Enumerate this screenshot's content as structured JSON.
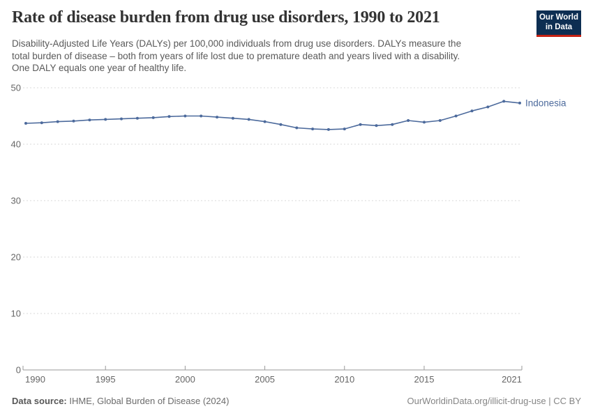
{
  "header": {
    "title": "Rate of disease burden from drug use disorders, 1990 to 2021",
    "subtitle_lines": [
      "Disability-Adjusted Life Years (DALYs) per 100,000 individuals from drug use disorders. DALYs measure the",
      "total burden of disease – both from years of life lost due to premature death and years lived with a disability.",
      "One DALY equals one year of healthy life."
    ]
  },
  "logo": {
    "line1": "Our World",
    "line2": "in Data",
    "bg_color": "#0d2e52",
    "accent_color": "#c52113"
  },
  "chart_data": {
    "type": "line",
    "title": "Rate of disease burden from drug use disorders, 1990 to 2021",
    "xlabel": "",
    "ylabel": "",
    "xlim": [
      1990,
      2021
    ],
    "ylim": [
      0,
      50
    ],
    "x_ticks": [
      1990,
      1995,
      2000,
      2005,
      2010,
      2015,
      2021
    ],
    "y_ticks": [
      0,
      10,
      20,
      30,
      40,
      50
    ],
    "grid": "horizontal-dashed",
    "legend_position": "end-of-line-label",
    "years": [
      1990,
      1991,
      1992,
      1993,
      1994,
      1995,
      1996,
      1997,
      1998,
      1999,
      2000,
      2001,
      2002,
      2003,
      2004,
      2005,
      2006,
      2007,
      2008,
      2009,
      2010,
      2011,
      2012,
      2013,
      2014,
      2015,
      2016,
      2017,
      2018,
      2019,
      2020,
      2021
    ],
    "series": [
      {
        "name": "Indonesia",
        "color": "#4c6a9c",
        "values": [
          43.7,
          43.8,
          44.0,
          44.1,
          44.3,
          44.4,
          44.5,
          44.6,
          44.7,
          44.9,
          45.0,
          45.0,
          44.8,
          44.6,
          44.4,
          44.0,
          43.5,
          42.9,
          42.7,
          42.6,
          42.7,
          43.5,
          43.3,
          43.5,
          44.2,
          43.9,
          44.2,
          45.0,
          45.9,
          46.6,
          47.6,
          47.3
        ]
      }
    ],
    "axis_colors": {
      "grid": "#d9d9d9",
      "axis_line": "#999999",
      "tick_label": "#666666"
    }
  },
  "footer": {
    "source_label": "Data source:",
    "source_value": "IHME, Global Burden of Disease (2024)",
    "license": "OurWorldinData.org/illicit-drug-use | CC BY"
  }
}
